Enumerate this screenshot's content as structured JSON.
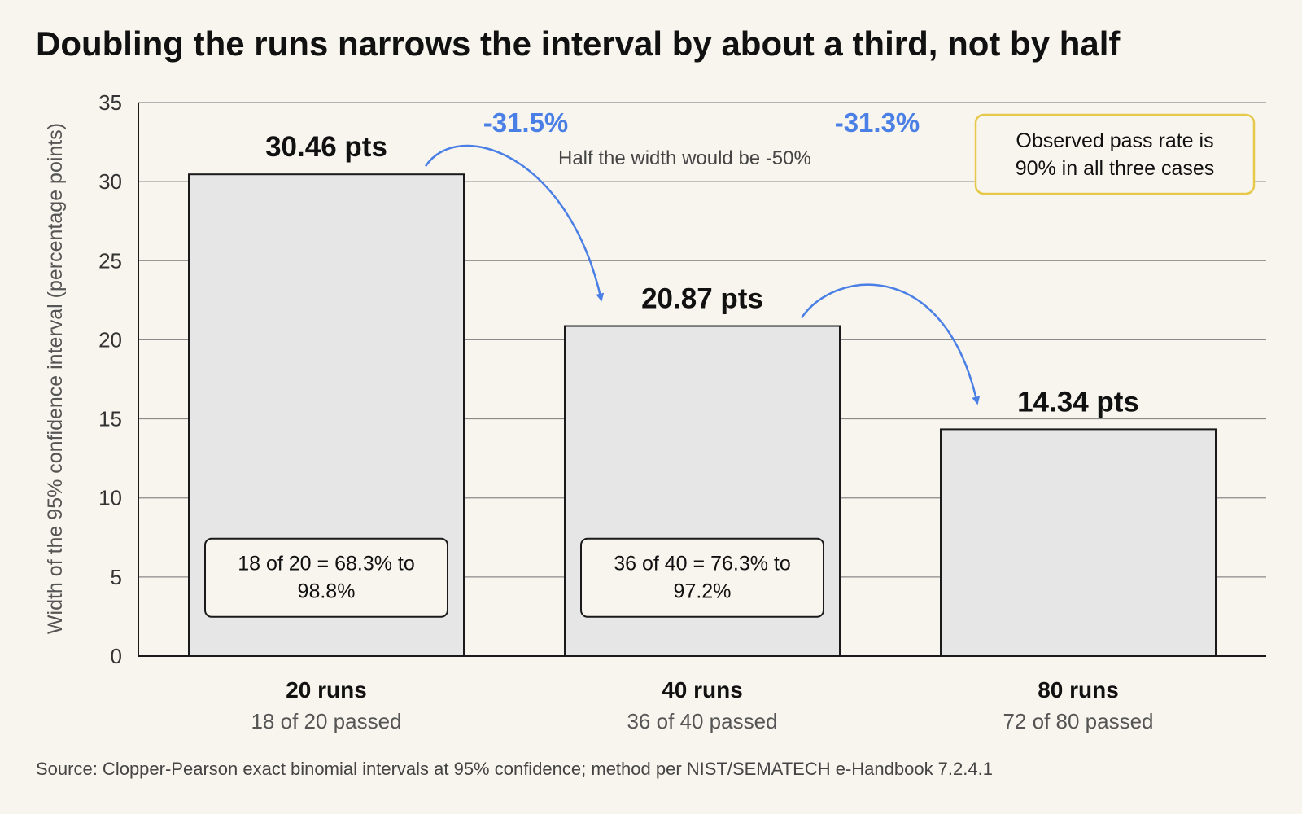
{
  "chart_data": {
    "type": "bar",
    "title": "Doubling the runs narrows the interval by about a third, not by half",
    "ylabel": "Width of the 95% confidence interval (percentage points)",
    "ylim": [
      0,
      35
    ],
    "yticks": [
      0,
      5,
      10,
      15,
      20,
      25,
      30,
      35
    ],
    "grid": true,
    "categories": [
      "20 runs",
      "40 runs",
      "80 runs"
    ],
    "subtitles": [
      "18 of 20 passed",
      "36 of 40 passed",
      "72 of 80 passed"
    ],
    "values": [
      30.46,
      20.87,
      14.34
    ],
    "value_labels": [
      "30.46 pts",
      "20.87 pts",
      "14.34 pts"
    ],
    "interval_labels": [
      [
        "18 of 20 = 68.3% to",
        "98.8%"
      ],
      [
        "36 of 40 = 76.3% to",
        "97.2%"
      ]
    ],
    "changes": [
      "-31.5%",
      "-31.3%"
    ],
    "annotation": "Half the width would be -50%",
    "callout": [
      "Observed pass rate is",
      "90% in all three cases"
    ],
    "source": "Source: Clopper-Pearson exact binomial intervals at 95% confidence; method per NIST/SEMATECH e-Handbook 7.2.4.1"
  },
  "colors": {
    "background": "#f8f5ee",
    "bar_fill": "#e6e6e6",
    "bar_stroke": "#1a1a1a",
    "grid": "#8a8a8a",
    "accent_blue": "#4a7fe6",
    "callout_border": "#e6c84a"
  }
}
